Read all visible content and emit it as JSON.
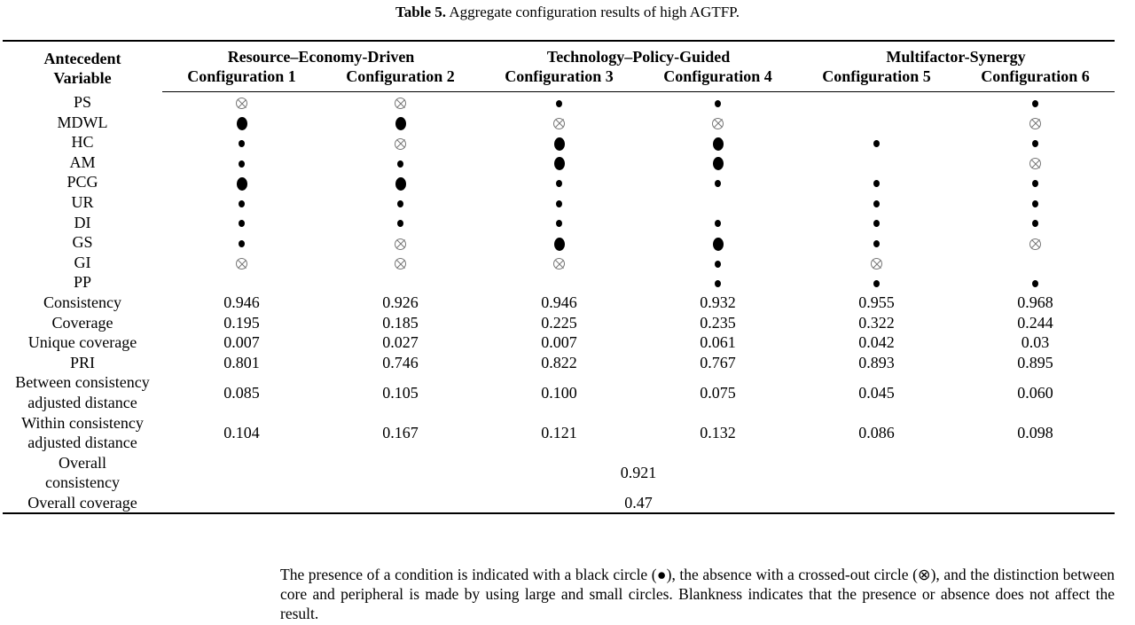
{
  "title": {
    "label": "Table 5.",
    "text": "Aggregate configuration results of high AGTFP."
  },
  "header": {
    "antecedent": "Antecedent Variable",
    "groups": [
      "Resource–Economy-Driven",
      "Technology–Policy-Guided",
      "Multifactor-Synergy"
    ],
    "configs": [
      "Configuration 1",
      "Configuration 2",
      "Configuration 3",
      "Configuration 4",
      "Configuration 5",
      "Configuration 6"
    ]
  },
  "legend": {
    "L": "core presence (large black circle)",
    "s": "peripheral presence (small black circle)",
    "x": "absence (crossed-out circle)",
    "": "blank"
  },
  "conditions": [
    {
      "name": "PS",
      "cells": [
        "x",
        "x",
        "s",
        "s",
        "",
        "s"
      ]
    },
    {
      "name": "MDWL",
      "cells": [
        "L",
        "L",
        "x",
        "x",
        "",
        "x"
      ]
    },
    {
      "name": "HC",
      "cells": [
        "s",
        "x",
        "L",
        "L",
        "s",
        "s"
      ]
    },
    {
      "name": "AM",
      "cells": [
        "s",
        "s",
        "L",
        "L",
        "",
        "x"
      ]
    },
    {
      "name": "PCG",
      "cells": [
        "L",
        "L",
        "s",
        "s",
        "s",
        "s"
      ]
    },
    {
      "name": "UR",
      "cells": [
        "s",
        "s",
        "s",
        "",
        "s",
        "s"
      ]
    },
    {
      "name": "DI",
      "cells": [
        "s",
        "s",
        "s",
        "s",
        "s",
        "s"
      ]
    },
    {
      "name": "GS",
      "cells": [
        "s",
        "x",
        "L",
        "L",
        "s",
        "x"
      ]
    },
    {
      "name": "GI",
      "cells": [
        "x",
        "x",
        "x",
        "s",
        "x",
        ""
      ]
    },
    {
      "name": "PP",
      "cells": [
        "",
        "",
        "",
        "s",
        "s",
        "s"
      ]
    }
  ],
  "stats": [
    {
      "name": "Consistency",
      "values": [
        "0.946",
        "0.926",
        "0.946",
        "0.932",
        "0.955",
        "0.968"
      ]
    },
    {
      "name": "Coverage",
      "values": [
        "0.195",
        "0.185",
        "0.225",
        "0.235",
        "0.322",
        "0.244"
      ]
    },
    {
      "name": "Unique coverage",
      "values": [
        "0.007",
        "0.027",
        "0.007",
        "0.061",
        "0.042",
        "0.03"
      ]
    },
    {
      "name": "PRI",
      "values": [
        "0.801",
        "0.746",
        "0.822",
        "0.767",
        "0.893",
        "0.895"
      ]
    },
    {
      "name": "Between consistency adjusted distance",
      "values": [
        "0.085",
        "0.105",
        "0.100",
        "0.075",
        "0.045",
        "0.060"
      ]
    },
    {
      "name": "Within consistency adjusted distance",
      "values": [
        "0.104",
        "0.167",
        "0.121",
        "0.132",
        "0.086",
        "0.098"
      ]
    }
  ],
  "overall": [
    {
      "name": "Overall consistency",
      "value": "0.921"
    },
    {
      "name": "Overall coverage",
      "value": "0.47"
    }
  ],
  "note": "The presence of a condition is indicated with a black circle (●), the absence with a crossed-out circle (⊗), and the distinction between core and peripheral is made by using large and small circles. Blankness indicates that the presence or absence does not affect the result."
}
